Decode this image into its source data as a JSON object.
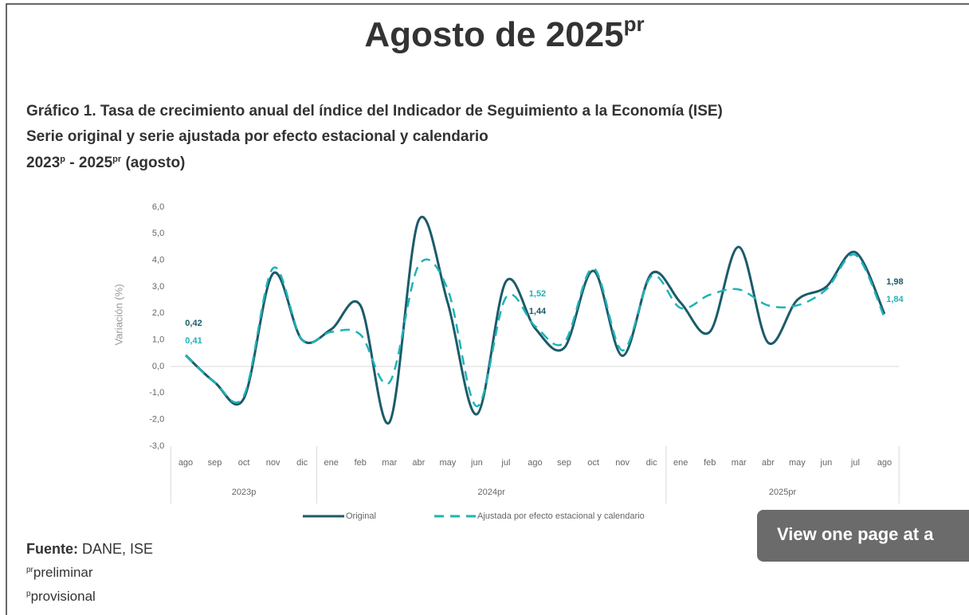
{
  "page_title": {
    "text": "Agosto de 2025",
    "sup": "pr"
  },
  "chart_heading": {
    "line1": "Gráfico 1. Tasa de crecimiento anual del índice del Indicador de Seguimiento a la Economía (ISE)",
    "line2": "Serie original y serie ajustada por efecto estacional y calendario",
    "line3": [
      "2023",
      "p",
      " - 2025",
      "pr",
      " (agosto)"
    ]
  },
  "chart_data": {
    "type": "line",
    "categories": [
      "ago",
      "sep",
      "oct",
      "nov",
      "dic",
      "ene",
      "feb",
      "mar",
      "abr",
      "may",
      "jun",
      "jul",
      "ago",
      "sep",
      "oct",
      "nov",
      "dic",
      "ene",
      "feb",
      "mar",
      "abr",
      "may",
      "jun",
      "jul",
      "ago"
    ],
    "groups": [
      {
        "name": "2023p",
        "start": 0,
        "end": 4
      },
      {
        "name": "2024pr",
        "start": 5,
        "end": 16
      },
      {
        "name": "2025pr",
        "start": 17,
        "end": 24
      }
    ],
    "ylabel": "Variación (%)",
    "ylim": [
      -3,
      6
    ],
    "yticks": [
      {
        "value": 6,
        "label": "6,0"
      },
      {
        "value": 5,
        "label": "5,0"
      },
      {
        "value": 4,
        "label": "4,0"
      },
      {
        "value": 3,
        "label": "3,0"
      },
      {
        "value": 2,
        "label": "2,0"
      },
      {
        "value": 1,
        "label": "1,0"
      },
      {
        "value": 0,
        "label": "0,0"
      },
      {
        "value": -1,
        "label": "-1,0"
      },
      {
        "value": -2,
        "label": "-2,0"
      },
      {
        "value": -3,
        "label": "-3,0"
      }
    ],
    "grid": false,
    "series": [
      {
        "name": "Original",
        "color": "#1b5b6a",
        "dash": false,
        "values": [
          0.42,
          -0.6,
          -1.2,
          3.5,
          1.0,
          1.4,
          2.3,
          -2.1,
          5.5,
          2.4,
          -1.8,
          3.2,
          1.44,
          0.7,
          3.6,
          0.4,
          3.5,
          2.4,
          1.3,
          4.5,
          0.9,
          2.5,
          3.0,
          4.3,
          1.98
        ],
        "value_labels": [
          "0,42",
          null,
          null,
          null,
          null,
          null,
          null,
          null,
          null,
          null,
          null,
          null,
          "1,44",
          null,
          null,
          null,
          null,
          null,
          null,
          null,
          null,
          null,
          null,
          null,
          "1,98"
        ]
      },
      {
        "name": "Ajustada por efecto estacional y calendario",
        "color": "#1fb3b8",
        "dash": true,
        "values": [
          0.41,
          -0.6,
          -1.1,
          3.7,
          1.0,
          1.3,
          1.2,
          -0.6,
          3.8,
          2.9,
          -1.5,
          2.6,
          1.52,
          0.9,
          3.7,
          0.6,
          3.4,
          2.2,
          2.7,
          2.9,
          2.3,
          2.3,
          2.9,
          4.2,
          1.84
        ],
        "value_labels": [
          "0,41",
          null,
          null,
          null,
          null,
          null,
          null,
          null,
          null,
          null,
          null,
          null,
          "1,52",
          null,
          null,
          null,
          null,
          null,
          null,
          null,
          null,
          null,
          null,
          null,
          "1,84"
        ]
      }
    ]
  },
  "footnotes": {
    "source_label": "Fuente:",
    "source": " DANE, ISE",
    "notes": [
      {
        "sup": "pr",
        "text": "preliminar"
      },
      {
        "sup": "p",
        "text": "provisional"
      }
    ]
  },
  "overlay_button": "View one page at a"
}
